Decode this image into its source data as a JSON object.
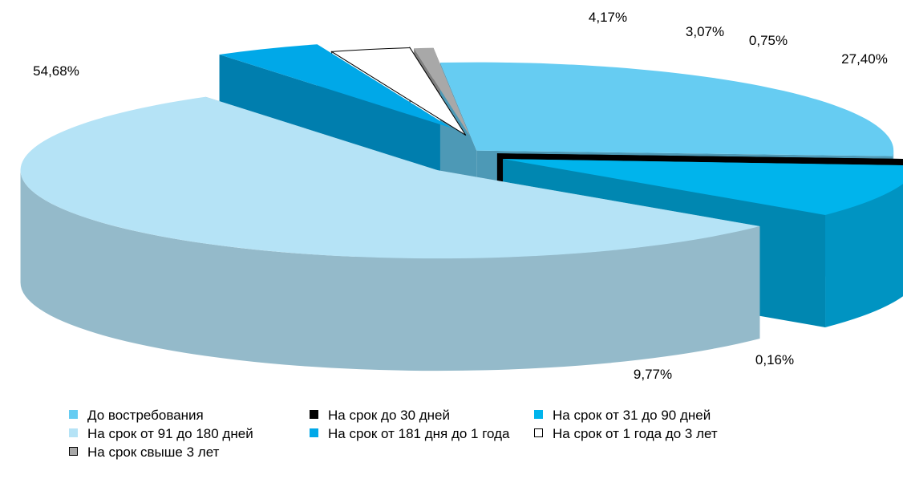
{
  "chart_data": {
    "type": "pie",
    "title": "",
    "style": "3d-exploded",
    "slices": [
      {
        "label": "До востребования",
        "value": 27.4,
        "value_label": "27,40%",
        "color": "#66ccf2"
      },
      {
        "label": "На срок до 30 дней",
        "value": 0.16,
        "value_label": "0,16%",
        "color": "#000000"
      },
      {
        "label": "На срок от 31 до 90 дней",
        "value": 9.77,
        "value_label": "9,77%",
        "color": "#00b4ec"
      },
      {
        "label": "На срок от 91  до 180 дней",
        "value": 54.68,
        "value_label": "54,68%",
        "color": "#b5e3f6"
      },
      {
        "label": "На срок от 181 дня до 1 года",
        "value": 4.17,
        "value_label": "4,17%",
        "color": "#00a8e8"
      },
      {
        "label": "На срок от 1 года до 3 лет",
        "value": 3.07,
        "value_label": "3,07%",
        "color": "#ffffff"
      },
      {
        "label": "На срок свыше 3 лет",
        "value": 0.75,
        "value_label": "0,75%",
        "color": "#a8a8a8"
      }
    ],
    "legend_position": "bottom"
  }
}
